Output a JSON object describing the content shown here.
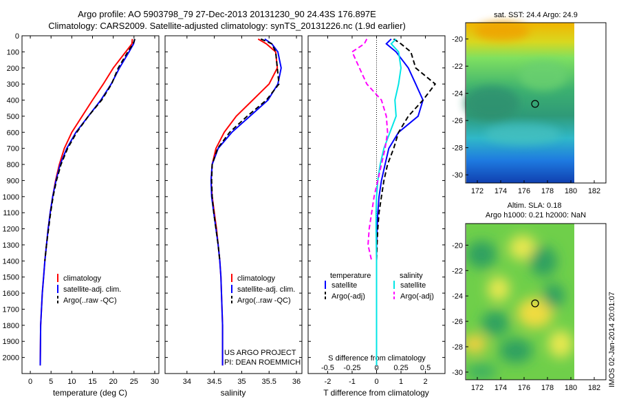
{
  "header": {
    "line1": "Argo profile: AO 5903798_79 27-Dec-2013 20131230_90 24.43S 176.897E",
    "line2": "Climatology: CARS2009. Satellite-adjusted climatology: synTS_20131226.nc (1.9d earlier)"
  },
  "colors": {
    "climatology": "#ff0000",
    "satellite": "#0000ff",
    "argo": "#000000",
    "sal_satellite": "#00e5e5",
    "sal_argo": "#ff00ff"
  },
  "chart_data": [
    {
      "type": "line",
      "xlabel": "temperature (deg C)",
      "xticks": [
        0,
        5,
        10,
        15,
        20,
        25,
        30
      ],
      "xlim": [
        -2,
        31
      ],
      "ylim": [
        0,
        2100
      ],
      "yticks": [
        0,
        100,
        200,
        300,
        400,
        500,
        600,
        700,
        800,
        900,
        1000,
        1100,
        1200,
        1300,
        1400,
        1500,
        1600,
        1700,
        1800,
        1900,
        2000
      ],
      "legend": [
        "climatology",
        "satellite-adj. clim.",
        "Argo(..raw -QC)"
      ],
      "series": [
        {
          "name": "climatology",
          "color": "#ff0000",
          "dash": "",
          "x": [
            24.6,
            24.5,
            23,
            20,
            17.6,
            15,
            12.5,
            10,
            8.2,
            7,
            6.1,
            5.4,
            4.8,
            4.3,
            3.9,
            3.5,
            3.2,
            2.9,
            2.7,
            2.5,
            2.4
          ],
          "y": [
            20,
            50,
            100,
            200,
            300,
            400,
            500,
            600,
            700,
            800,
            900,
            1000,
            1100,
            1200,
            1300,
            1400,
            1500,
            1600,
            1700,
            1800,
            2050
          ]
        },
        {
          "name": "satellite-adj. clim.",
          "color": "#0000ff",
          "dash": "",
          "x": [
            25.2,
            24.9,
            23.8,
            21.5,
            19.5,
            17,
            14,
            11,
            8.8,
            7.2,
            6.2,
            5.4,
            4.8,
            4.3,
            3.9,
            3.5,
            3.2,
            2.9,
            2.7,
            2.5,
            2.4
          ],
          "y": [
            20,
            50,
            100,
            200,
            300,
            400,
            500,
            600,
            700,
            800,
            900,
            1000,
            1100,
            1200,
            1300,
            1400,
            1500,
            1600,
            1700,
            1800,
            2050
          ]
        },
        {
          "name": "Argo(..raw -QC)",
          "color": "#000000",
          "dash": "7,4",
          "x": [
            25.2,
            24.8,
            23.5,
            21.2,
            19.6,
            17.2,
            14,
            11.2,
            9,
            7.4,
            6.3,
            5.5,
            4.9,
            4.4,
            3.9,
            3.5
          ],
          "y": [
            20,
            50,
            100,
            200,
            300,
            400,
            500,
            600,
            700,
            800,
            900,
            1000,
            1100,
            1200,
            1300,
            1400
          ]
        }
      ]
    },
    {
      "type": "line",
      "xlabel": "salinity",
      "xticks": [
        34,
        34.5,
        35,
        35.5,
        36
      ],
      "xlim": [
        33.6,
        36.1
      ],
      "ylim": [
        0,
        2100
      ],
      "legend": [
        "climatology",
        "satellite-adj. clim.",
        "Argo(..raw -QC)"
      ],
      "series": [
        {
          "name": "climatology",
          "color": "#ff0000",
          "dash": "",
          "x": [
            35.3,
            35.45,
            35.62,
            35.65,
            35.5,
            35.2,
            34.9,
            34.68,
            34.53,
            34.46,
            34.44,
            34.46,
            34.5,
            34.54,
            34.57,
            34.6,
            34.62,
            34.63,
            34.64,
            34.65,
            34.65
          ],
          "y": [
            20,
            50,
            100,
            200,
            300,
            400,
            500,
            600,
            700,
            800,
            900,
            1000,
            1100,
            1200,
            1300,
            1400,
            1500,
            1600,
            1700,
            1800,
            2050
          ]
        },
        {
          "name": "satellite-adj. clim.",
          "color": "#0000ff",
          "dash": "",
          "x": [
            35.42,
            35.55,
            35.66,
            35.72,
            35.66,
            35.48,
            35.15,
            34.82,
            34.57,
            34.46,
            34.44,
            34.45,
            34.49,
            34.53,
            34.57,
            34.6,
            34.62,
            34.63,
            34.64,
            34.65,
            34.65
          ],
          "y": [
            20,
            50,
            100,
            200,
            300,
            400,
            500,
            600,
            700,
            800,
            900,
            1000,
            1100,
            1200,
            1300,
            1400,
            1500,
            1600,
            1700,
            1800,
            2050
          ]
        },
        {
          "name": "Argo(..raw -QC)",
          "color": "#000000",
          "dash": "7,4",
          "x": [
            35.35,
            35.55,
            35.62,
            35.65,
            35.68,
            35.45,
            35.1,
            34.78,
            34.56,
            34.46,
            34.45,
            34.46,
            34.49,
            34.53,
            34.57,
            34.6
          ],
          "y": [
            20,
            50,
            100,
            200,
            300,
            400,
            500,
            600,
            700,
            800,
            900,
            1000,
            1100,
            1200,
            1300,
            1400
          ]
        }
      ]
    },
    {
      "type": "line",
      "xlabel": "T difference from climatology",
      "xticks": [
        -2,
        -1,
        0,
        1,
        2
      ],
      "xlim": [
        -2.8,
        2.8
      ],
      "top_axis_label": "S difference from climatology",
      "top_ticks": [
        "-0.5",
        "-0.25",
        "0",
        "0.25",
        "0.5"
      ],
      "ylim": [
        0,
        2100
      ],
      "legend_headers": [
        "temperature",
        "salinity"
      ],
      "legend": [
        "satellite",
        "Argo(-adj)",
        "satellite",
        "Argo(-adj)"
      ],
      "series": [
        {
          "name": "satellite",
          "color": "#0000ff",
          "dash": "",
          "x": [
            0.6,
            0.4,
            0.8,
            1.3,
            1.6,
            1.9,
            1.7,
            0.9,
            0.5,
            0.35,
            0.2,
            0.1,
            0.05,
            0.02,
            0.0,
            0.0,
            0.0,
            0.0,
            0.0,
            0.0,
            0.0
          ],
          "y": [
            20,
            50,
            100,
            200,
            300,
            400,
            500,
            600,
            700,
            800,
            900,
            1000,
            1100,
            1200,
            1300,
            1400,
            1500,
            1600,
            1700,
            1800,
            2050
          ]
        },
        {
          "name": "Argo(-adj)",
          "color": "#000000",
          "dash": "7,4",
          "x": [
            0.7,
            1.0,
            1.4,
            1.6,
            2.4,
            1.9,
            1.3,
            0.9,
            0.7,
            0.45,
            0.3,
            0.2,
            0.1,
            0.05,
            0.02,
            0.0
          ],
          "y": [
            20,
            50,
            100,
            200,
            300,
            400,
            500,
            600,
            700,
            800,
            900,
            1000,
            1100,
            1200,
            1300,
            1400
          ]
        },
        {
          "name": "satellite",
          "color": "#00e5e5",
          "dash": "",
          "x": [
            0.8,
            0.6,
            0.9,
            1.0,
            0.9,
            0.75,
            0.8,
            0.55,
            0.3,
            0.15,
            0.05,
            0.0,
            -0.02,
            -0.02,
            -0.01,
            0.0,
            0.0,
            0.0,
            0.0,
            0.0,
            0.0
          ],
          "y": [
            20,
            50,
            100,
            200,
            300,
            400,
            500,
            600,
            700,
            800,
            900,
            1000,
            1100,
            1200,
            1300,
            1400,
            1500,
            1600,
            1700,
            1800,
            2050
          ]
        },
        {
          "name": "Argo(-adj)",
          "color": "#ff00ff",
          "dash": "7,4",
          "x": [
            -0.4,
            -0.5,
            -1.0,
            -0.7,
            -0.4,
            0.2,
            0.4,
            0.45,
            0.35,
            0.2,
            0.05,
            -0.1,
            -0.2,
            -0.3,
            -0.35,
            -0.2
          ],
          "y": [
            20,
            50,
            100,
            200,
            300,
            400,
            500,
            600,
            700,
            800,
            900,
            1000,
            1100,
            1200,
            1300,
            1400
          ]
        }
      ]
    }
  ],
  "maps": [
    {
      "title": "sat. SST: 24.4 Argo: 24.9",
      "xticks": [
        "172",
        "174",
        "176",
        "178",
        "180",
        "182"
      ],
      "yticks": [
        "-20",
        "-22",
        "-24",
        "-26",
        "-28",
        "-30"
      ]
    },
    {
      "title_line1": "Altim. SLA: 0.18",
      "title_line2": "Argo h1000: 0.21 h2000: NaN",
      "xticks": [
        "172",
        "174",
        "176",
        "178",
        "180",
        "182"
      ],
      "yticks": [
        "-20",
        "-22",
        "-24",
        "-26",
        "-28",
        "-30"
      ]
    }
  ],
  "annotation": {
    "line1": "US ARGO PROJECT",
    "line2": "PI: DEAN ROEMMICH"
  },
  "stamp": "IMOS 02-Jan-2014 20:01:07"
}
